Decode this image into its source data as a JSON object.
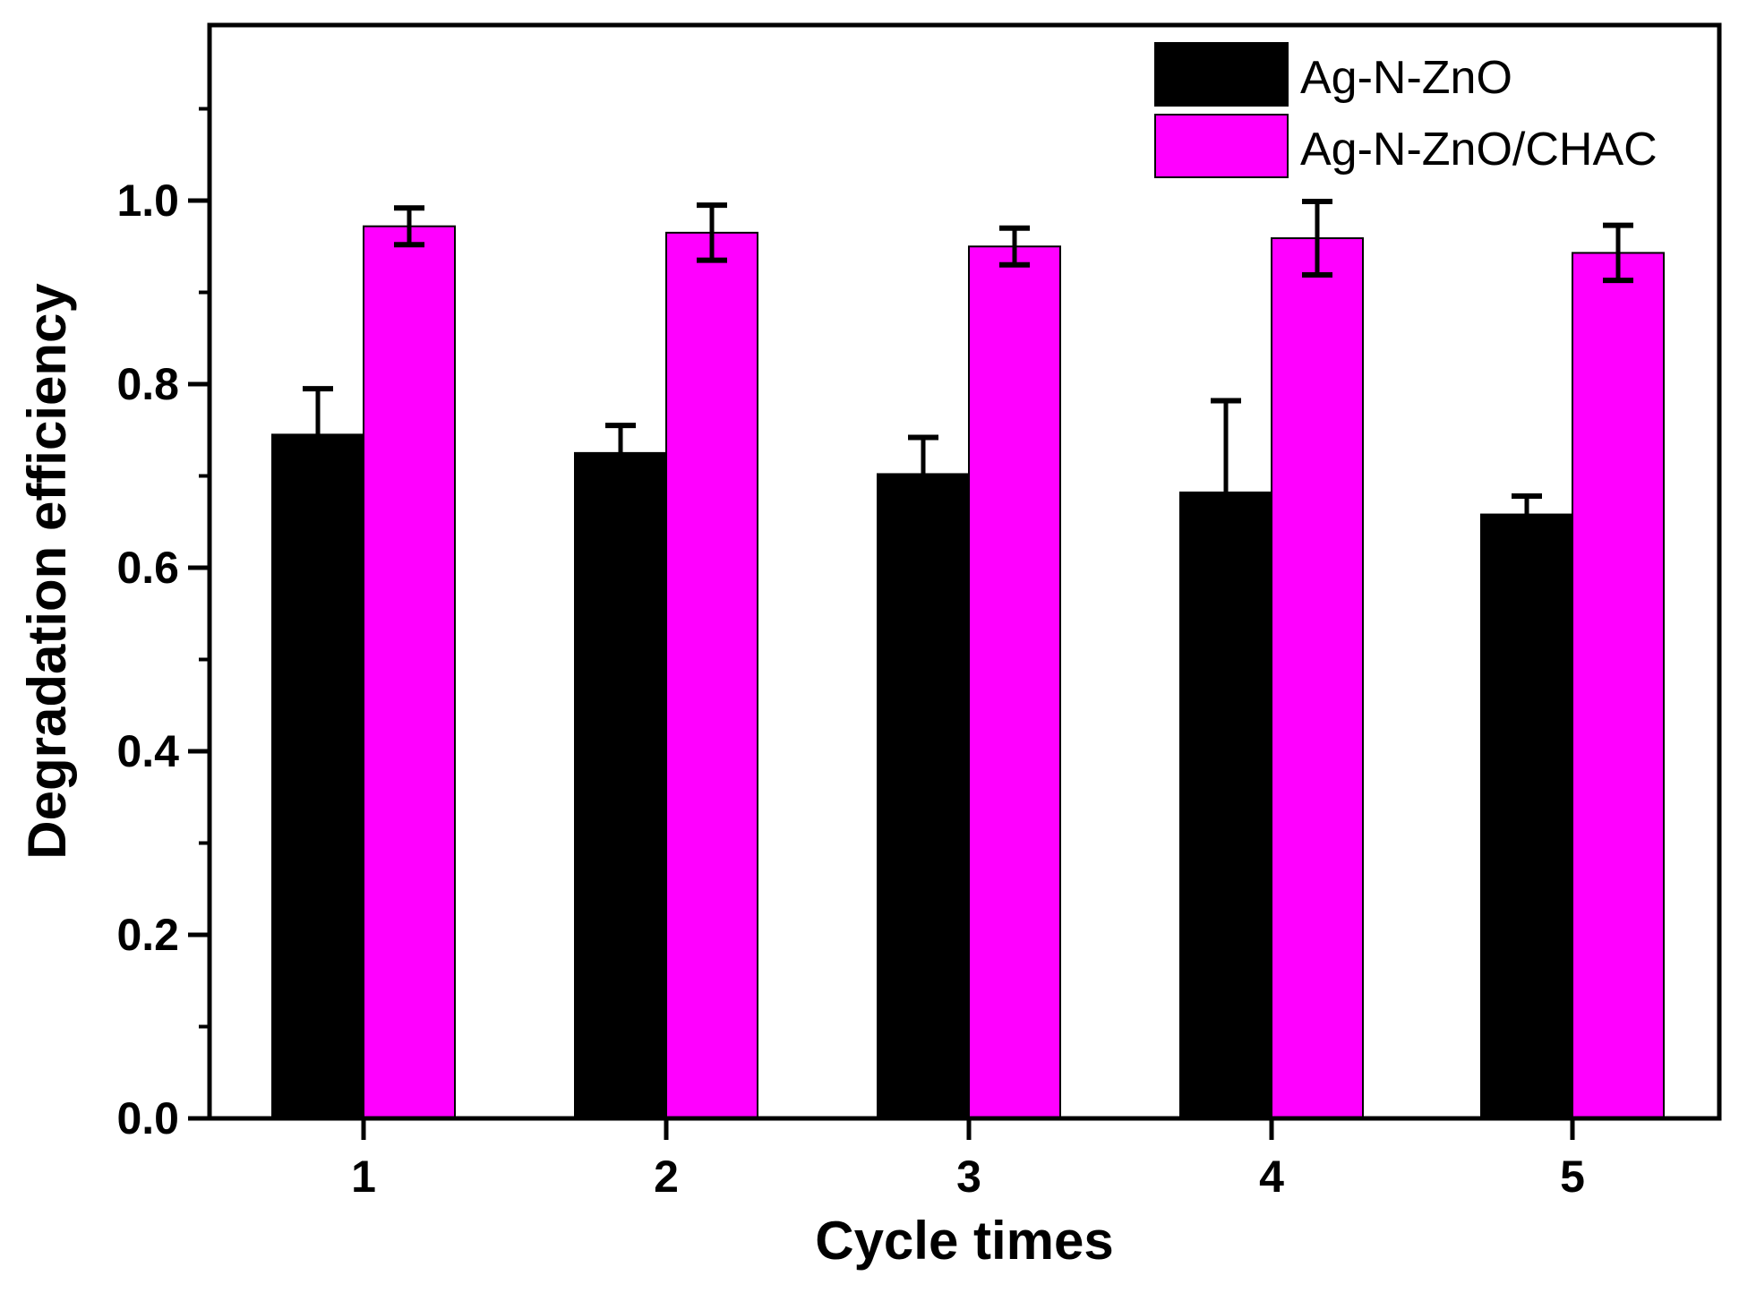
{
  "chart_data": {
    "type": "bar",
    "title": "",
    "xlabel": "Cycle times",
    "ylabel": "Degradation efficiency",
    "categories": [
      "1",
      "2",
      "3",
      "4",
      "5"
    ],
    "ylim": [
      0,
      1.2
    ],
    "yticks": [
      "0.0",
      "0.2",
      "0.4",
      "0.6",
      "0.8",
      "1.0"
    ],
    "grid": false,
    "legend_position": "top-right",
    "series": [
      {
        "name": "Ag-N-ZnO",
        "color": "#000000",
        "values": [
          0.745,
          0.725,
          0.702,
          0.682,
          0.658
        ],
        "errors": [
          0.05,
          0.03,
          0.04,
          0.1,
          0.02
        ],
        "error_style": "upper"
      },
      {
        "name": "Ag-N-ZnO/CHAC",
        "color": "#ff00ff",
        "values": [
          0.972,
          0.965,
          0.95,
          0.959,
          0.943
        ],
        "errors": [
          0.02,
          0.03,
          0.02,
          0.04,
          0.03
        ],
        "error_style": "both"
      }
    ]
  }
}
